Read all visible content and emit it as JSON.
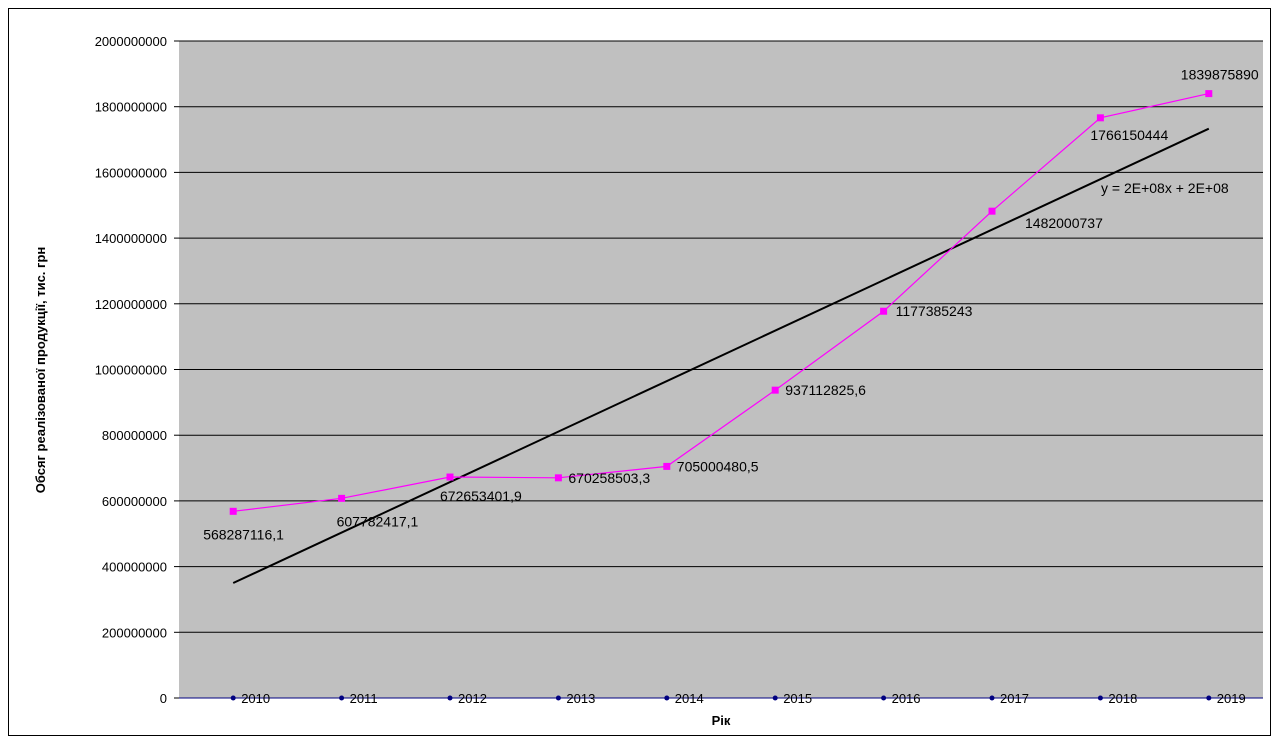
{
  "chart_data": {
    "type": "line",
    "title": "",
    "xlabel": "Рік",
    "ylabel": "Обсяг реалізованої продукції, тис. грн",
    "ylim": [
      0,
      2000000000
    ],
    "ytick_step": 200000000,
    "grid": true,
    "plot_background": "#c0c0c0",
    "categories": [
      "2010",
      "2011",
      "2012",
      "2013",
      "2014",
      "2015",
      "2016",
      "2017",
      "2018",
      "2019"
    ],
    "series": [
      {
        "color": "#ff00ff",
        "values": [
          568287116.1,
          607782417.1,
          672653401.9,
          670258503.3,
          705000480.5,
          937112825.6,
          1177385243,
          1482000737,
          1766150444,
          1839875890
        ],
        "data_labels": [
          "568287116,1",
          "607782417,1",
          "672653401,9",
          "670258503,3",
          "705000480,5",
          "937112825,6",
          "1177385243",
          "1482000737",
          "1766150444",
          "1839875890"
        ]
      }
    ],
    "category_marker_color": "#000080",
    "trendline": {
      "color": "#000000",
      "equation": "y = 2E+08x + 2E+08",
      "start_value": 350000000,
      "end_value": 1733000000
    }
  }
}
